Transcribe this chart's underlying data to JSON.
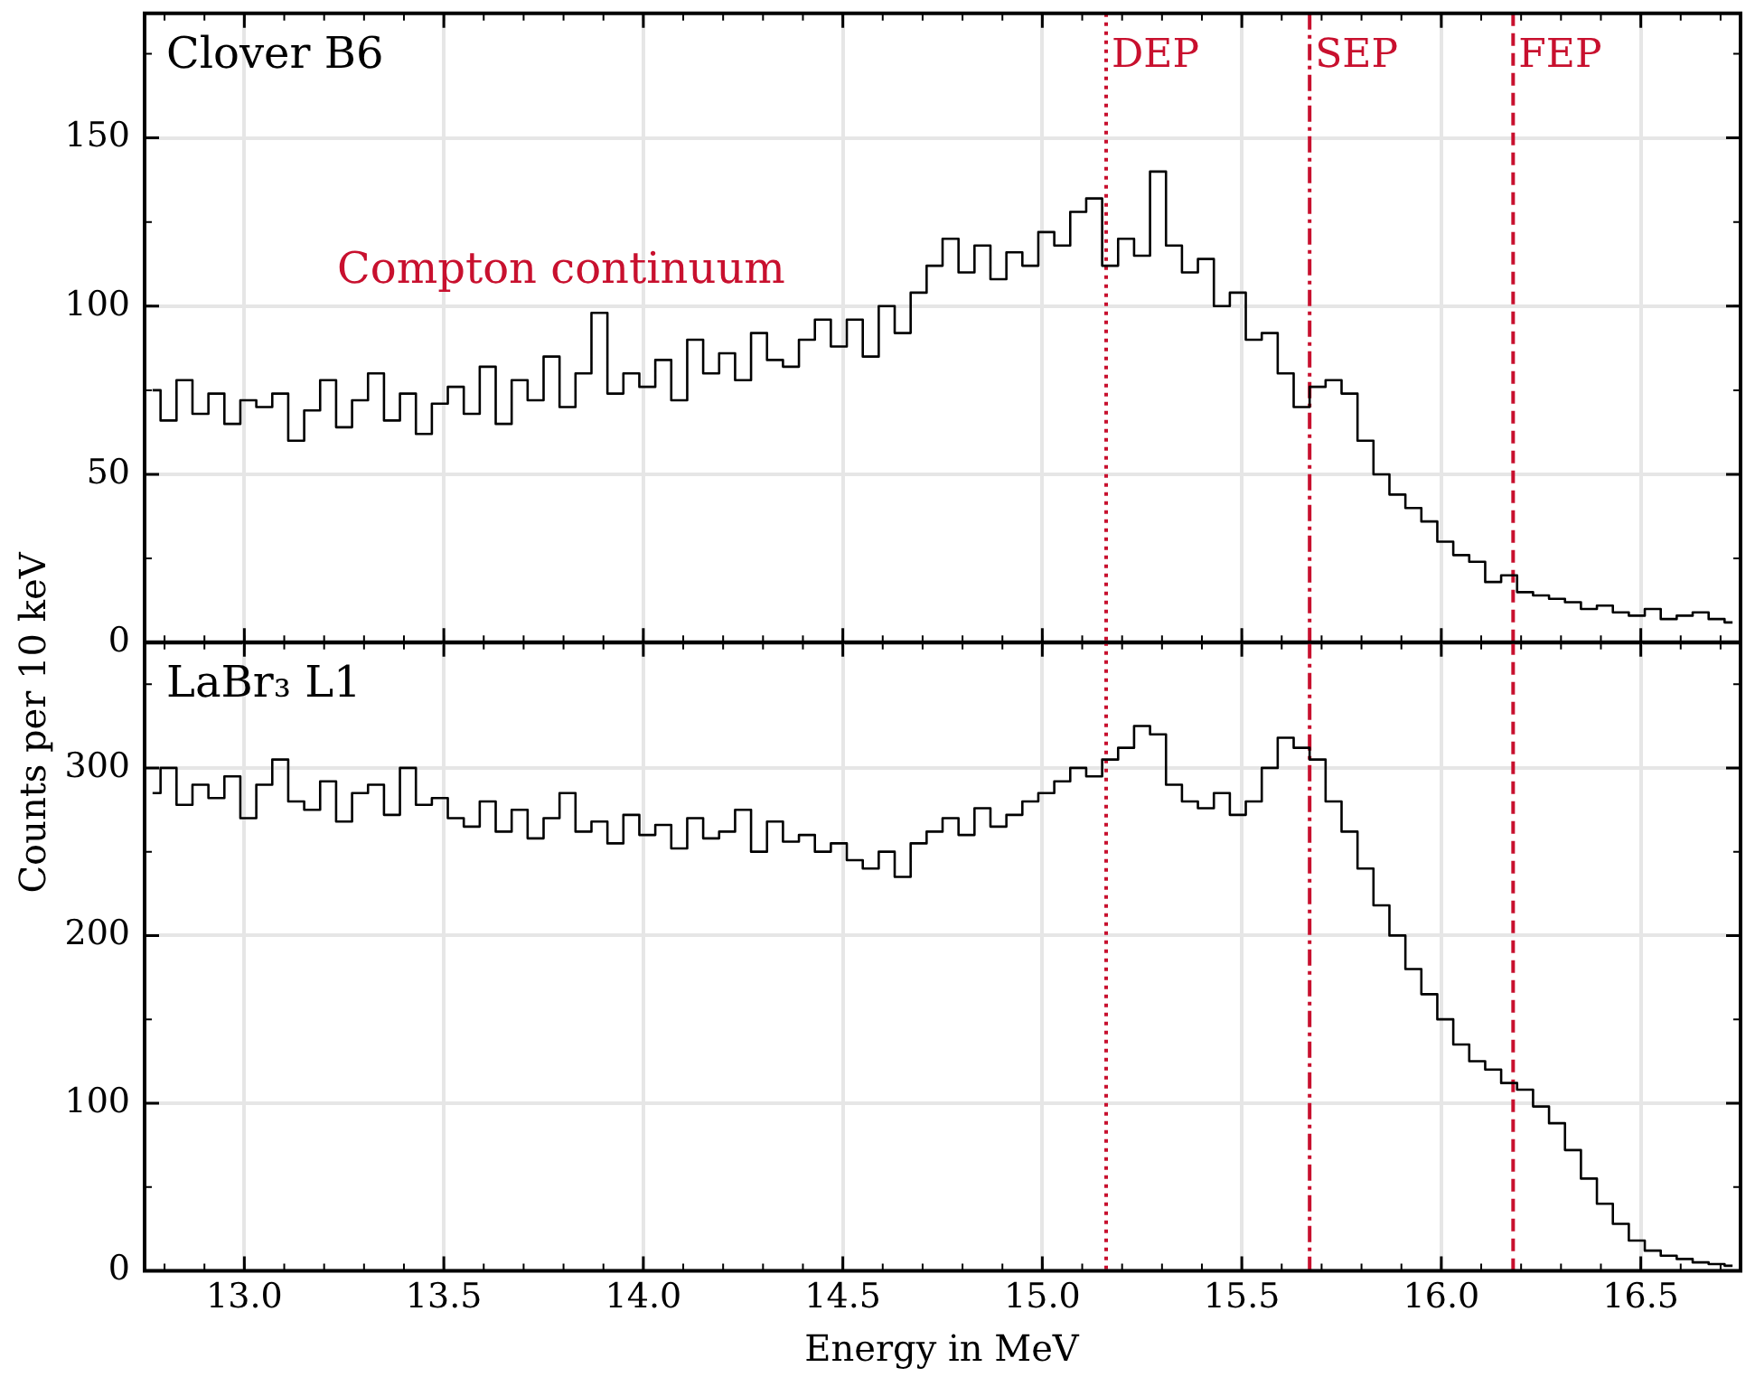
{
  "chart_data": [
    {
      "type": "step",
      "title": "Clover B6",
      "ylabel": "Counts per 10 keV",
      "x": [
        12.77,
        12.81,
        12.85,
        12.89,
        12.93,
        12.97,
        13.01,
        13.05,
        13.09,
        13.13,
        13.17,
        13.21,
        13.25,
        13.29,
        13.33,
        13.37,
        13.41,
        13.45,
        13.49,
        13.53,
        13.57,
        13.61,
        13.65,
        13.69,
        13.73,
        13.77,
        13.81,
        13.85,
        13.89,
        13.93,
        13.97,
        14.01,
        14.05,
        14.09,
        14.13,
        14.17,
        14.21,
        14.25,
        14.29,
        14.33,
        14.37,
        14.41,
        14.45,
        14.49,
        14.53,
        14.57,
        14.61,
        14.65,
        14.69,
        14.73,
        14.77,
        14.81,
        14.85,
        14.89,
        14.93,
        14.97,
        15.01,
        15.05,
        15.09,
        15.13,
        15.17,
        15.21,
        15.25,
        15.29,
        15.33,
        15.37,
        15.41,
        15.45,
        15.49,
        15.53,
        15.57,
        15.61,
        15.65,
        15.69,
        15.73,
        15.77,
        15.81,
        15.85,
        15.89,
        15.93,
        15.97,
        16.01,
        16.05,
        16.09,
        16.13,
        16.17,
        16.21,
        16.25,
        16.29,
        16.33,
        16.37,
        16.41,
        16.45,
        16.49,
        16.53,
        16.57,
        16.61,
        16.65,
        16.69,
        16.73
      ],
      "series": [
        {
          "color": "#000000",
          "values": [
            75,
            66,
            78,
            68,
            74,
            65,
            72,
            70,
            74,
            60,
            69,
            78,
            64,
            72,
            80,
            66,
            74,
            62,
            71,
            76,
            68,
            82,
            65,
            78,
            72,
            85,
            70,
            80,
            98,
            74,
            80,
            76,
            84,
            72,
            90,
            80,
            86,
            78,
            92,
            84,
            82,
            90,
            96,
            88,
            96,
            85,
            100,
            92,
            104,
            112,
            120,
            110,
            118,
            108,
            116,
            112,
            122,
            118,
            128,
            132,
            112,
            120,
            115,
            140,
            118,
            110,
            114,
            100,
            104,
            90,
            92,
            80,
            70,
            76,
            78,
            74,
            60,
            50,
            44,
            40,
            36,
            30,
            26,
            24,
            18,
            20,
            15,
            14,
            13,
            12,
            10,
            11,
            9,
            8,
            10,
            7,
            8,
            9,
            7,
            6
          ]
        }
      ],
      "xlim": [
        12.75,
        16.75
      ],
      "ylim": [
        0,
        187
      ],
      "xticks": [
        13,
        13.5,
        14,
        14.5,
        15,
        15.5,
        16,
        16.5
      ],
      "yticks": [
        0,
        50,
        100,
        150
      ],
      "tick_labels": "y",
      "grid": true,
      "legend": false,
      "marker": "none",
      "ref_lines": [
        {
          "axis": "x",
          "value": 15.16,
          "label": "DEP",
          "color": "#c8102e",
          "line_style": "dotted"
        },
        {
          "axis": "x",
          "value": 15.67,
          "label": "SEP",
          "color": "#c8102e",
          "line_style": "dashdot"
        },
        {
          "axis": "x",
          "value": 16.18,
          "label": "FEP",
          "color": "#c8102e",
          "line_style": "dashed"
        }
      ],
      "annotations": [
        "Compton continuum"
      ]
    },
    {
      "type": "step",
      "title": "LaBr₃ L1",
      "xlabel": "Energy in MeV",
      "x": [
        12.77,
        12.81,
        12.85,
        12.89,
        12.93,
        12.97,
        13.01,
        13.05,
        13.09,
        13.13,
        13.17,
        13.21,
        13.25,
        13.29,
        13.33,
        13.37,
        13.41,
        13.45,
        13.49,
        13.53,
        13.57,
        13.61,
        13.65,
        13.69,
        13.73,
        13.77,
        13.81,
        13.85,
        13.89,
        13.93,
        13.97,
        14.01,
        14.05,
        14.09,
        14.13,
        14.17,
        14.21,
        14.25,
        14.29,
        14.33,
        14.37,
        14.41,
        14.45,
        14.49,
        14.53,
        14.57,
        14.61,
        14.65,
        14.69,
        14.73,
        14.77,
        14.81,
        14.85,
        14.89,
        14.93,
        14.97,
        15.01,
        15.05,
        15.09,
        15.13,
        15.17,
        15.21,
        15.25,
        15.29,
        15.33,
        15.37,
        15.41,
        15.45,
        15.49,
        15.53,
        15.57,
        15.61,
        15.65,
        15.69,
        15.73,
        15.77,
        15.81,
        15.85,
        15.89,
        15.93,
        15.97,
        16.01,
        16.05,
        16.09,
        16.13,
        16.17,
        16.21,
        16.25,
        16.29,
        16.33,
        16.37,
        16.41,
        16.45,
        16.49,
        16.53,
        16.57,
        16.61,
        16.65,
        16.69,
        16.73
      ],
      "series": [
        {
          "color": "#000000",
          "values": [
            285,
            300,
            278,
            290,
            282,
            295,
            270,
            290,
            305,
            280,
            275,
            292,
            268,
            285,
            290,
            272,
            300,
            278,
            282,
            270,
            265,
            280,
            262,
            275,
            258,
            270,
            285,
            262,
            268,
            255,
            272,
            260,
            266,
            252,
            270,
            258,
            262,
            275,
            250,
            268,
            256,
            260,
            250,
            255,
            245,
            240,
            250,
            235,
            255,
            262,
            270,
            260,
            276,
            265,
            272,
            280,
            285,
            292,
            300,
            295,
            305,
            312,
            325,
            320,
            290,
            280,
            276,
            285,
            272,
            280,
            300,
            318,
            312,
            305,
            280,
            262,
            240,
            218,
            200,
            180,
            165,
            150,
            135,
            125,
            120,
            112,
            108,
            98,
            88,
            72,
            55,
            40,
            28,
            18,
            12,
            9,
            7,
            5,
            4,
            3
          ]
        }
      ],
      "xlim": [
        12.75,
        16.75
      ],
      "ylim": [
        0,
        375
      ],
      "xticks": [
        {
          "value": 13,
          "label": "13.0"
        },
        {
          "value": 13.5,
          "label": "13.5"
        },
        {
          "value": 14,
          "label": "14.0"
        },
        {
          "value": 14.5,
          "label": "14.5"
        },
        {
          "value": 15,
          "label": "15.0"
        },
        {
          "value": 15.5,
          "label": "15.5"
        },
        {
          "value": 16,
          "label": "16.0"
        },
        {
          "value": 16.5,
          "label": "16.5"
        }
      ],
      "yticks": [
        0,
        100,
        200,
        300
      ],
      "grid": true,
      "legend": false,
      "marker": "none",
      "ref_lines": [
        {
          "axis": "x",
          "value": 15.16,
          "color": "#c8102e",
          "line_style": "dotted"
        },
        {
          "axis": "x",
          "value": 15.67,
          "color": "#c8102e",
          "line_style": "dashdot"
        },
        {
          "axis": "x",
          "value": 16.18,
          "color": "#c8102e",
          "line_style": "dashed"
        }
      ]
    }
  ]
}
